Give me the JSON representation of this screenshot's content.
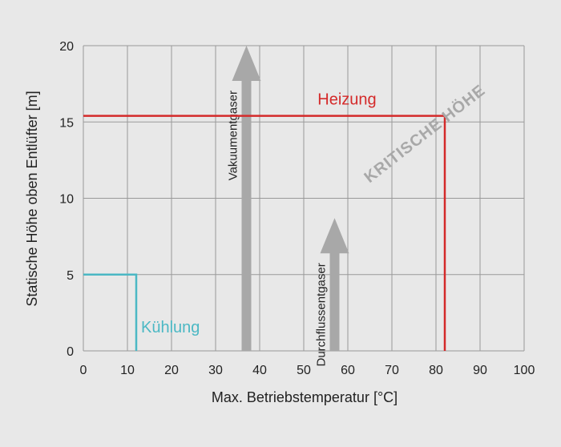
{
  "chart_data": {
    "type": "line",
    "xlabel": "Max. Betriebstemperatur [°C]",
    "ylabel": "Statische Höhe oben Entlüfter [m]",
    "xlim": [
      0,
      100
    ],
    "ylim": [
      0,
      20
    ],
    "x_ticks": [
      "0",
      "10",
      "20",
      "30",
      "40",
      "50",
      "60",
      "70",
      "80",
      "90",
      "100"
    ],
    "y_ticks": [
      "0",
      "5",
      "10",
      "15",
      "20"
    ],
    "grid": true,
    "series": [
      {
        "name": "Heizung",
        "color": "#d42a2a",
        "points": [
          [
            0,
            15.4
          ],
          [
            82,
            15.4
          ],
          [
            82,
            0
          ]
        ]
      },
      {
        "name": "Kühlung",
        "color": "#4bb8c4",
        "points": [
          [
            0,
            5
          ],
          [
            12,
            5
          ],
          [
            12,
            0
          ]
        ]
      }
    ],
    "arrows": [
      {
        "label": "Vakuumentgaser",
        "x": 37,
        "y_start": 0,
        "y_end": 20,
        "color": "#a8a8a8"
      },
      {
        "label": "Durchflussentgaser",
        "x": 57,
        "y_start": 0,
        "y_end": 8.7,
        "color": "#a8a8a8"
      }
    ],
    "annotation": "KRITISCHE HÖHE"
  }
}
